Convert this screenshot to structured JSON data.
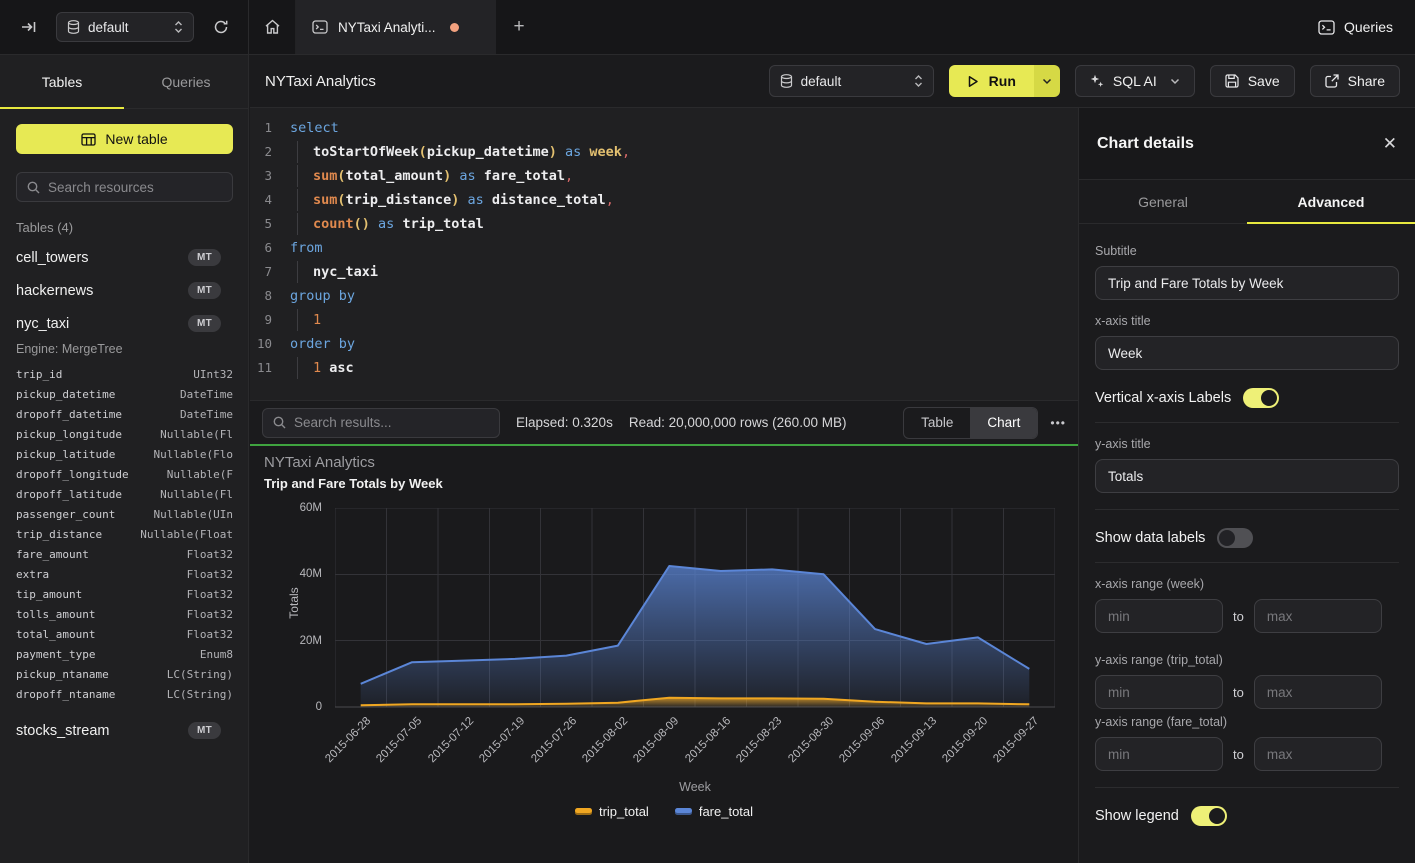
{
  "colors": {
    "accent_yellow": "#e7e954",
    "success_green": "#3fa33f",
    "tab_dot": "#f2a17f"
  },
  "topbar": {
    "database": "default",
    "tab_title": "NYTaxi Analyti...",
    "new_tab": "+",
    "queries_label": "Queries"
  },
  "sidebar": {
    "tab_tables": "Tables",
    "tab_queries": "Queries",
    "new_table_label": "New table",
    "search_placeholder": "Search resources",
    "section_label": "Tables (4)",
    "tables": [
      {
        "name": "cell_towers",
        "badge": "MT"
      },
      {
        "name": "hackernews",
        "badge": "MT"
      },
      {
        "name": "nyc_taxi",
        "badge": "MT",
        "engine": "Engine: MergeTree",
        "columns": [
          [
            "trip_id",
            "UInt32"
          ],
          [
            "pickup_datetime",
            "DateTime"
          ],
          [
            "dropoff_datetime",
            "DateTime"
          ],
          [
            "pickup_longitude",
            "Nullable(Fl"
          ],
          [
            "pickup_latitude",
            "Nullable(Flo"
          ],
          [
            "dropoff_longitude",
            "Nullable(F"
          ],
          [
            "dropoff_latitude",
            "Nullable(Fl"
          ],
          [
            "passenger_count",
            "Nullable(UIn"
          ],
          [
            "trip_distance",
            "Nullable(Float"
          ],
          [
            "fare_amount",
            "Float32"
          ],
          [
            "extra",
            "Float32"
          ],
          [
            "tip_amount",
            "Float32"
          ],
          [
            "tolls_amount",
            "Float32"
          ],
          [
            "total_amount",
            "Float32"
          ],
          [
            "payment_type",
            "Enum8"
          ],
          [
            "pickup_ntaname",
            "LC(String)"
          ],
          [
            "dropoff_ntaname",
            "LC(String)"
          ]
        ]
      },
      {
        "name": "stocks_stream",
        "badge": "MT"
      }
    ]
  },
  "header": {
    "title": "NYTaxi Analytics",
    "database": "default",
    "run_label": "Run",
    "sql_ai_label": "SQL AI",
    "save_label": "Save",
    "share_label": "Share"
  },
  "editor": {
    "lines": [
      {
        "n": "1",
        "ind": false,
        "toks": [
          [
            "k",
            "select"
          ]
        ]
      },
      {
        "n": "2",
        "ind": true,
        "toks": [
          [
            "i",
            "toStartOfWeek"
          ],
          [
            "p",
            "("
          ],
          [
            "i",
            "pickup_datetime"
          ],
          [
            "p",
            ")"
          ],
          [
            "t",
            " "
          ],
          [
            "k",
            "as"
          ],
          [
            "t",
            " "
          ],
          [
            "w",
            "week"
          ],
          [
            "c",
            ","
          ]
        ]
      },
      {
        "n": "3",
        "ind": true,
        "toks": [
          [
            "f",
            "sum"
          ],
          [
            "p",
            "("
          ],
          [
            "i",
            "total_amount"
          ],
          [
            "p",
            ")"
          ],
          [
            "t",
            " "
          ],
          [
            "k",
            "as"
          ],
          [
            "t",
            " "
          ],
          [
            "i",
            "fare_total"
          ],
          [
            "c",
            ","
          ]
        ]
      },
      {
        "n": "4",
        "ind": true,
        "toks": [
          [
            "f",
            "sum"
          ],
          [
            "p",
            "("
          ],
          [
            "i",
            "trip_distance"
          ],
          [
            "p",
            ")"
          ],
          [
            "t",
            " "
          ],
          [
            "k",
            "as"
          ],
          [
            "t",
            " "
          ],
          [
            "i",
            "distance_total"
          ],
          [
            "c",
            ","
          ]
        ]
      },
      {
        "n": "5",
        "ind": true,
        "toks": [
          [
            "f",
            "count"
          ],
          [
            "p",
            "()"
          ],
          [
            "t",
            " "
          ],
          [
            "k",
            "as"
          ],
          [
            "t",
            " "
          ],
          [
            "i",
            "trip_total"
          ]
        ]
      },
      {
        "n": "6",
        "ind": false,
        "toks": [
          [
            "k",
            "from"
          ]
        ]
      },
      {
        "n": "7",
        "ind": true,
        "toks": [
          [
            "i",
            "nyc_taxi"
          ]
        ]
      },
      {
        "n": "8",
        "ind": false,
        "toks": [
          [
            "k",
            "group by"
          ]
        ]
      },
      {
        "n": "9",
        "ind": true,
        "toks": [
          [
            "n",
            "1"
          ]
        ]
      },
      {
        "n": "10",
        "ind": false,
        "toks": [
          [
            "k",
            "order by"
          ]
        ]
      },
      {
        "n": "11",
        "ind": true,
        "toks": [
          [
            "n",
            "1"
          ],
          [
            "t",
            " "
          ],
          [
            "i",
            "asc"
          ]
        ]
      }
    ]
  },
  "results_bar": {
    "search_placeholder": "Search results...",
    "elapsed": "Elapsed: 0.320s",
    "read": "Read: 20,000,000 rows (260.00 MB)",
    "view_table": "Table",
    "view_chart": "Chart",
    "more": "•••"
  },
  "chart_data": {
    "type": "area",
    "title": "NYTaxi Analytics",
    "subtitle": "Trip and Fare Totals by Week",
    "xlabel": "Week",
    "ylabel": "Totals",
    "categories": [
      "2015-06-28",
      "2015-07-05",
      "2015-07-12",
      "2015-07-19",
      "2015-07-26",
      "2015-08-02",
      "2015-08-09",
      "2015-08-16",
      "2015-08-23",
      "2015-08-30",
      "2015-09-06",
      "2015-09-13",
      "2015-09-20",
      "2015-09-27"
    ],
    "series": [
      {
        "name": "trip_total",
        "color": "#f0a722",
        "values": [
          500000,
          800000,
          800000,
          850000,
          950000,
          1300000,
          2800000,
          2600000,
          2600000,
          2500000,
          1600000,
          1100000,
          1100000,
          800000
        ]
      },
      {
        "name": "fare_total",
        "color": "#5b86d7",
        "values": [
          7000000,
          13500000,
          14000000,
          14500000,
          15500000,
          18500000,
          42500000,
          41000000,
          41500000,
          40000000,
          23500000,
          19000000,
          21000000,
          11500000
        ]
      }
    ],
    "ylim": [
      0,
      60000000
    ],
    "ytick_values": [
      0,
      20000000,
      40000000,
      60000000
    ],
    "ytick_labels": [
      "0",
      "20M",
      "40M",
      "60M"
    ],
    "grid": true,
    "legend_position": "bottom",
    "vertical_x_labels": true
  },
  "panel": {
    "title": "Chart details",
    "close_glyph": "✕",
    "tab_general": "General",
    "tab_advanced": "Advanced",
    "subtitle_label": "Subtitle",
    "subtitle_value": "Trip and Fare Totals by Week",
    "xaxis_title_label": "x-axis title",
    "xaxis_title_value": "Week",
    "vertical_labels": {
      "label": "Vertical x-axis Labels",
      "on": true
    },
    "yaxis_title_label": "y-axis title",
    "yaxis_title_value": "Totals",
    "data_labels": {
      "label": "Show data labels",
      "on": false
    },
    "xrange": {
      "label": "x-axis range (week)",
      "min_ph": "min",
      "to": "to",
      "max_ph": "max"
    },
    "yrange_trip": {
      "label": "y-axis range (trip_total)",
      "min_ph": "min",
      "to": "to",
      "max_ph": "max"
    },
    "yrange_fare": {
      "label": "y-axis range (fare_total)",
      "min_ph": "min",
      "to": "to",
      "max_ph": "max"
    },
    "legend_toggle": {
      "label": "Show legend",
      "on": true
    }
  }
}
